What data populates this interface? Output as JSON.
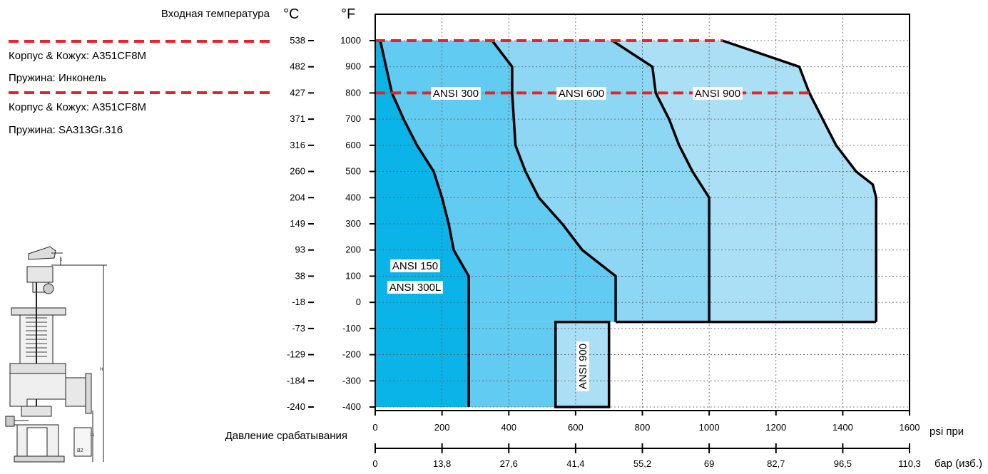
{
  "colors": {
    "zone_150": "#0bb4e8",
    "zone_300": "#62cbf2",
    "zone_600": "#8dd7f4",
    "zone_900": "#aadff6",
    "zone_900_low": "#aadff6",
    "material_line": "#e8222a",
    "grid": "#555555",
    "boundary": "#000000"
  },
  "header": {
    "inlet_temperature": "Входная температура",
    "celsius_unit": "°C",
    "fahrenheit_unit": "°F"
  },
  "legend": {
    "high_body": "Корпус & Кожух: A351CF8M",
    "high_spring": "Пружина: Инконель",
    "low_body": "Корпус & Кожух: A351CF8M",
    "low_spring": "Пружина: SA313Gr.316"
  },
  "footer": {
    "set_pressure": "Давление срабатывания",
    "psi_unit": "psi при",
    "bar_unit": "бар (изб.)"
  },
  "chart_data": {
    "type": "area",
    "title": "",
    "xlabel": "Давление срабатывания",
    "ylabel": "Входная температура",
    "xlim_psi": [
      0,
      1600
    ],
    "ylim_f": [
      -400,
      1000
    ],
    "grid": true,
    "x_ticks_psi": [
      "0",
      "200",
      "400",
      "600",
      "800",
      "1000",
      "1200",
      "1400",
      "1600"
    ],
    "x_ticks_bar": [
      "0",
      "13,8",
      "27,6",
      "41,4",
      "55,2",
      "69",
      "82,7",
      "96,5",
      "110,3"
    ],
    "y_ticks_f": [
      "1000",
      "900",
      "800",
      "700",
      "600",
      "500",
      "400",
      "300",
      "200",
      "100",
      "0",
      "-100",
      "-200",
      "-300",
      "-400"
    ],
    "y_ticks_c": [
      "538",
      "482",
      "427",
      "371",
      "316",
      "260",
      "204",
      "149",
      "93",
      "38",
      "-18",
      "-73",
      "-129",
      "-184",
      "-240"
    ],
    "material_lines_f": [
      1000,
      800
    ],
    "series": [
      {
        "name": "ANSI 150",
        "label_lines": [
          "ANSI 150",
          "ANSI 300L"
        ],
        "color_key": "zone_150",
        "curve": [
          [
            280,
            -400
          ],
          [
            280,
            100
          ],
          [
            235,
            200
          ],
          [
            220,
            300
          ],
          [
            200,
            400
          ],
          [
            175,
            500
          ],
          [
            125,
            600
          ],
          [
            85,
            700
          ],
          [
            50,
            800
          ],
          [
            15,
            1000
          ]
        ]
      },
      {
        "name": "ANSI 300",
        "label_lines": [
          "ANSI 300"
        ],
        "color_key": "zone_300",
        "curve": [
          [
            720,
            -75
          ],
          [
            720,
            100
          ],
          [
            620,
            200
          ],
          [
            560,
            300
          ],
          [
            490,
            400
          ],
          [
            450,
            500
          ],
          [
            420,
            600
          ],
          [
            415,
            700
          ],
          [
            410,
            800
          ],
          [
            410,
            900
          ],
          [
            350,
            1000
          ]
        ]
      },
      {
        "name": "ANSI 600",
        "label_lines": [
          "ANSI 600"
        ],
        "color_key": "zone_600",
        "curve": [
          [
            1000,
            -75
          ],
          [
            1000,
            400
          ],
          [
            950,
            500
          ],
          [
            910,
            600
          ],
          [
            880,
            700
          ],
          [
            840,
            800
          ],
          [
            830,
            900
          ],
          [
            710,
            1000
          ]
        ]
      },
      {
        "name": "ANSI 900",
        "label_lines": [
          "ANSI 900"
        ],
        "color_key": "zone_900",
        "curve": [
          [
            1500,
            -75
          ],
          [
            1500,
            400
          ],
          [
            1490,
            450
          ],
          [
            1440,
            500
          ],
          [
            1380,
            600
          ],
          [
            1340,
            700
          ],
          [
            1320,
            750
          ],
          [
            1300,
            800
          ],
          [
            1270,
            900
          ],
          [
            1040,
            1000
          ]
        ]
      },
      {
        "name": "ANSI 900",
        "label_lines": [
          "ANSI 900"
        ],
        "color_key": "zone_900_low",
        "rect": [
          [
            540,
            -400
          ],
          [
            700,
            -75
          ]
        ]
      }
    ]
  }
}
